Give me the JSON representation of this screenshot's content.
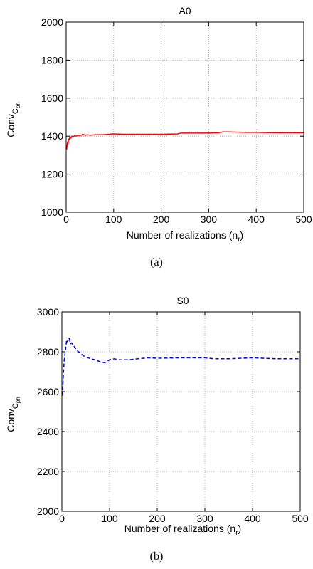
{
  "chart_data": [
    {
      "type": "line",
      "title": "A0",
      "xlabel": "Number of realizations (n",
      "xlabel_sub": "r",
      "xlabel_end": ")",
      "ylabel": "Conv",
      "ylabel_sub": "C",
      "ylabel_subsub": "ph",
      "xlim": [
        0,
        500
      ],
      "ylim": [
        1000,
        2000
      ],
      "xticks": [
        "0",
        "100",
        "200",
        "300",
        "400",
        "500"
      ],
      "yticks": [
        "1000",
        "1200",
        "1400",
        "1600",
        "1800",
        "2000"
      ],
      "grid": true,
      "series": [
        {
          "color": "#ff0000",
          "style": "solid",
          "x": [
            1,
            2,
            3,
            4,
            5,
            6,
            8,
            10,
            12,
            15,
            18,
            20,
            25,
            30,
            35,
            40,
            45,
            50,
            60,
            70,
            80,
            90,
            100,
            120,
            150,
            200,
            235,
            240,
            300,
            320,
            330,
            340,
            380,
            400,
            450,
            500
          ],
          "y": [
            1330,
            1350,
            1370,
            1360,
            1385,
            1380,
            1395,
            1390,
            1400,
            1398,
            1402,
            1400,
            1405,
            1403,
            1410,
            1405,
            1407,
            1405,
            1407,
            1408,
            1408,
            1410,
            1412,
            1410,
            1410,
            1410,
            1412,
            1416,
            1416,
            1418,
            1422,
            1422,
            1420,
            1420,
            1418,
            1418
          ]
        }
      ]
    },
    {
      "type": "line",
      "title": "S0",
      "xlabel": "Number of realizations (n",
      "xlabel_sub": "r",
      "xlabel_end": ")",
      "ylabel": "Conv",
      "ylabel_sub": "C",
      "ylabel_subsub": "ph",
      "xlim": [
        0,
        500
      ],
      "ylim": [
        2000,
        3000
      ],
      "xticks": [
        "0",
        "100",
        "200",
        "300",
        "400",
        "500"
      ],
      "yticks": [
        "2000",
        "2200",
        "2400",
        "2600",
        "2800",
        "3000"
      ],
      "grid": true,
      "series": [
        {
          "color": "#0000ff",
          "style": "dashed",
          "x": [
            1,
            3,
            5,
            8,
            10,
            12,
            15,
            18,
            20,
            25,
            30,
            35,
            40,
            45,
            50,
            55,
            60,
            70,
            80,
            90,
            100,
            110,
            120,
            140,
            160,
            180,
            200,
            250,
            300,
            320,
            350,
            400,
            450,
            500
          ],
          "y": [
            2580,
            2680,
            2760,
            2820,
            2860,
            2850,
            2870,
            2840,
            2845,
            2830,
            2810,
            2800,
            2790,
            2780,
            2775,
            2770,
            2765,
            2760,
            2750,
            2745,
            2760,
            2765,
            2760,
            2760,
            2765,
            2770,
            2768,
            2770,
            2770,
            2765,
            2765,
            2770,
            2765,
            2765
          ]
        }
      ]
    }
  ],
  "captions": {
    "a": "(a)",
    "b": "(b)"
  }
}
